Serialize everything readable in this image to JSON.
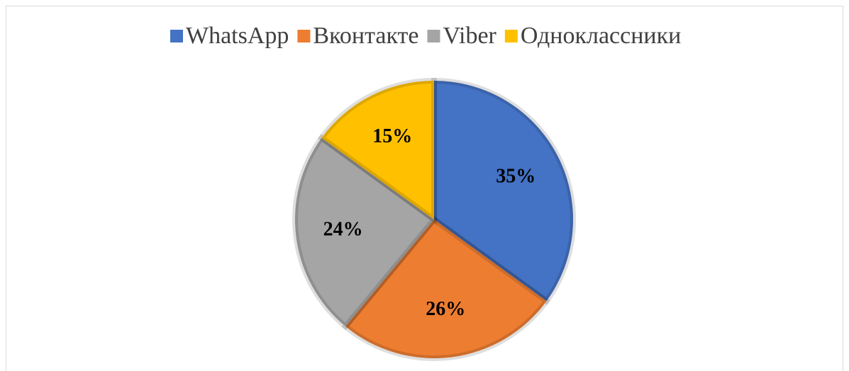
{
  "chart_data": {
    "type": "pie",
    "categories": [
      "WhatsApp",
      "Вконтакте",
      "Viber",
      "Одноклассники"
    ],
    "values": [
      35,
      26,
      24,
      15
    ],
    "value_labels": [
      "35%",
      "26%",
      "24%",
      "15%"
    ],
    "colors": [
      "#4472c4",
      "#ed7d31",
      "#a5a5a5",
      "#ffc000"
    ],
    "legend": "top"
  }
}
